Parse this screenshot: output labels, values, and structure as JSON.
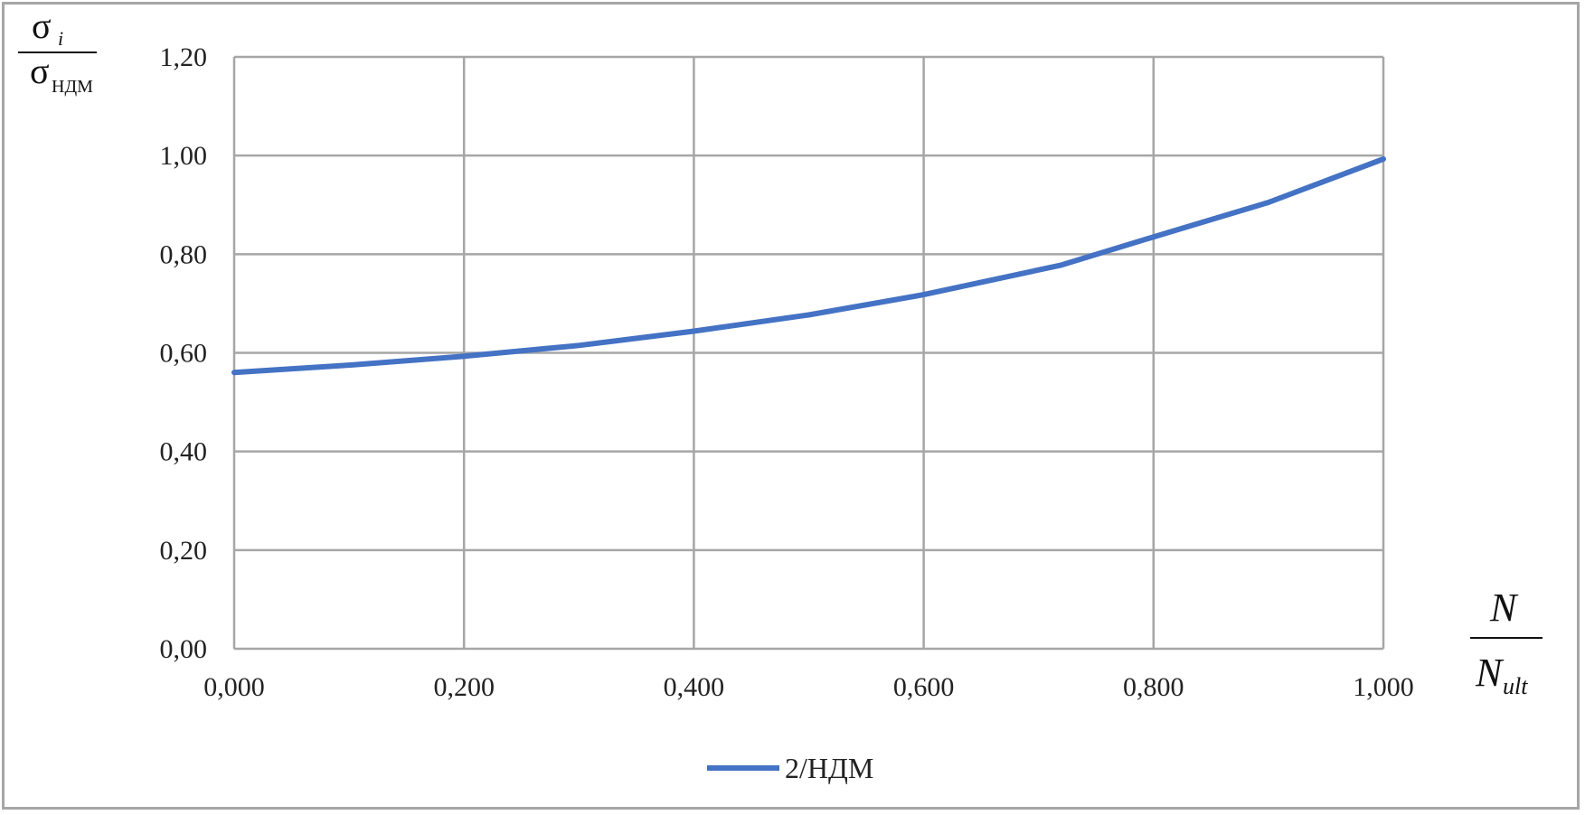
{
  "chart_data": {
    "type": "line",
    "ylabel": {
      "numerator": "σ",
      "numerator_sub": "i",
      "denominator": "σ",
      "denominator_sub": "НДМ"
    },
    "xlabel": {
      "numerator": "N",
      "denominator": "N",
      "denominator_sub": "ult"
    },
    "xlim": [
      0.0,
      1.0
    ],
    "ylim": [
      0.0,
      1.2
    ],
    "x_ticks": [
      0.0,
      0.2,
      0.4,
      0.6,
      0.8,
      1.0
    ],
    "y_ticks": [
      0.0,
      0.2,
      0.4,
      0.6,
      0.8,
      1.0,
      1.2
    ],
    "x_tick_labels": [
      "0,000",
      "0,200",
      "0,400",
      "0,600",
      "0,800",
      "1,000"
    ],
    "y_tick_labels": [
      "0,00",
      "0,20",
      "0,40",
      "0,60",
      "0,80",
      "1,00",
      "1,20"
    ],
    "grid": true,
    "legend_position": "bottom",
    "series": [
      {
        "name": "2/НДМ",
        "color": "#4472c4",
        "x": [
          0.0,
          0.1,
          0.2,
          0.3,
          0.4,
          0.5,
          0.6,
          0.72,
          0.8,
          0.9,
          1.0
        ],
        "y": [
          0.56,
          0.575,
          0.593,
          0.615,
          0.644,
          0.677,
          0.718,
          0.778,
          0.835,
          0.905,
          0.993
        ]
      }
    ]
  }
}
